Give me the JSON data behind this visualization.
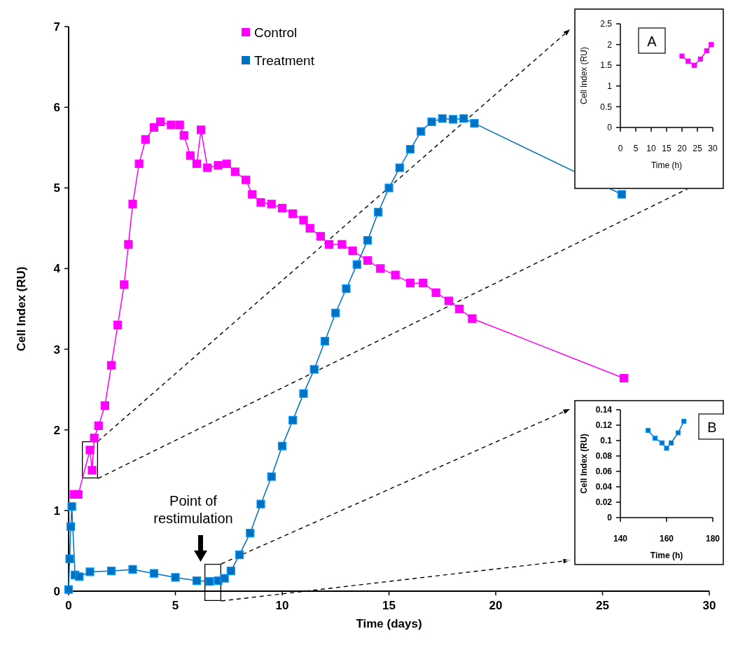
{
  "chart_data": [
    {
      "type": "line",
      "xlabel": "Time (days)",
      "ylabel": "Cell Index (RU)",
      "xlim": [
        0,
        30
      ],
      "xticks": [
        0,
        5,
        10,
        15,
        20,
        25,
        30
      ],
      "ylim": [
        0,
        7
      ],
      "yticks": [
        0,
        1,
        2,
        3,
        4,
        5,
        6,
        7
      ],
      "legend": "top",
      "marker": "square",
      "annotations": [
        "Point of restimulation"
      ],
      "series": [
        {
          "name": "Control",
          "color": "#ff00ff",
          "x": [
            0.25,
            0.45,
            1.0,
            1.1,
            1.2,
            1.4,
            1.7,
            2.0,
            2.3,
            2.6,
            2.8,
            3.0,
            3.3,
            3.6,
            4.0,
            4.3,
            4.8,
            5.2,
            5.4,
            5.7,
            6.0,
            6.2,
            6.5,
            7.0,
            7.4,
            7.8,
            8.3,
            8.6,
            9.0,
            9.5,
            10.0,
            10.5,
            11.0,
            11.3,
            11.8,
            12.2,
            12.8,
            13.3,
            14.0,
            14.6,
            15.3,
            16.0,
            16.6,
            17.2,
            17.8,
            18.3,
            18.9,
            26.0
          ],
          "values": [
            1.2,
            1.2,
            1.75,
            1.5,
            1.9,
            2.05,
            2.3,
            2.8,
            3.3,
            3.8,
            4.3,
            4.8,
            5.3,
            5.6,
            5.75,
            5.82,
            5.78,
            5.78,
            5.65,
            5.4,
            5.3,
            5.72,
            5.25,
            5.28,
            5.3,
            5.2,
            5.1,
            4.92,
            4.82,
            4.8,
            4.75,
            4.68,
            4.6,
            4.5,
            4.4,
            4.3,
            4.3,
            4.22,
            4.1,
            4.0,
            3.92,
            3.82,
            3.82,
            3.7,
            3.6,
            3.5,
            3.38,
            2.64
          ]
        },
        {
          "name": "Treatment",
          "color": "#0070c0",
          "x": [
            0.0,
            0.05,
            0.1,
            0.15,
            0.3,
            0.5,
            1.0,
            2.0,
            3.0,
            4.0,
            5.0,
            6.0,
            6.6,
            7.0,
            7.3,
            7.6,
            8.0,
            8.5,
            9.0,
            9.5,
            10.0,
            10.5,
            11.0,
            11.5,
            12.0,
            12.5,
            13.0,
            13.5,
            14.0,
            14.5,
            15.0,
            15.5,
            16.0,
            16.5,
            17.0,
            17.5,
            18.0,
            18.5,
            19.0,
            25.9
          ],
          "values": [
            0.02,
            0.4,
            0.8,
            1.05,
            0.2,
            0.18,
            0.24,
            0.25,
            0.27,
            0.22,
            0.17,
            0.13,
            0.12,
            0.13,
            0.16,
            0.25,
            0.45,
            0.72,
            1.08,
            1.42,
            1.8,
            2.12,
            2.45,
            2.75,
            3.1,
            3.45,
            3.75,
            4.05,
            4.35,
            4.7,
            5.0,
            5.25,
            5.48,
            5.7,
            5.82,
            5.86,
            5.85,
            5.86,
            5.8,
            4.92
          ]
        }
      ]
    },
    {
      "type": "line",
      "xlabel": "Time (h)",
      "ylabel": "Cell Index (RU)",
      "xlim": [
        0,
        30
      ],
      "xticks": [
        0,
        5,
        10,
        15,
        20,
        25,
        30
      ],
      "ylim": [
        0,
        2.5
      ],
      "yticks": [
        0,
        0.5,
        1,
        1.5,
        2,
        2.5
      ],
      "marker": "square",
      "annotations": [
        "A"
      ],
      "series": [
        {
          "color": "#ff00ff",
          "x": [
            20,
            22,
            24,
            26,
            28,
            29.5
          ],
          "values": [
            1.72,
            1.6,
            1.5,
            1.65,
            1.85,
            2.0
          ]
        }
      ]
    },
    {
      "type": "line",
      "xlabel": "Time (h)",
      "ylabel": "Cell Index (RU)",
      "xlim": [
        140,
        180
      ],
      "xticks": [
        140,
        160,
        180
      ],
      "ylim": [
        0,
        0.14
      ],
      "yticks": [
        0,
        0.02,
        0.04,
        0.06,
        0.08,
        0.1,
        0.12,
        0.14
      ],
      "marker": "square",
      "annotations": [
        "B"
      ],
      "series": [
        {
          "color": "#0070c0",
          "x": [
            152,
            155,
            158,
            160,
            162,
            165,
            167.5
          ],
          "values": [
            0.113,
            0.103,
            0.097,
            0.09,
            0.097,
            0.11,
            0.125
          ]
        }
      ]
    }
  ]
}
